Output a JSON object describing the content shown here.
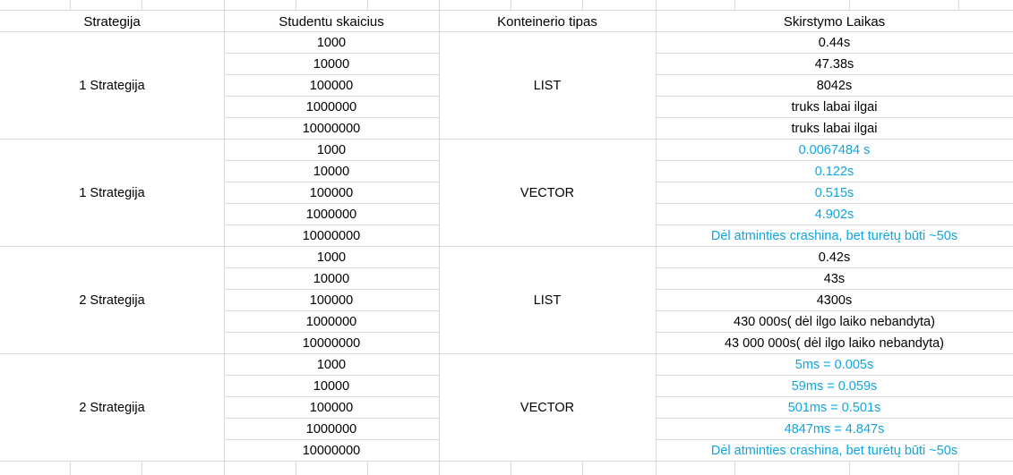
{
  "headers": {
    "strategy": "Strategija",
    "students": "Studentu skaicius",
    "container": "Konteinerio tipas",
    "time": "Skirstymo Laikas"
  },
  "blocks": [
    {
      "strategy": "1 Strategija",
      "container": "LIST",
      "highlight": false,
      "rows": [
        {
          "students": "1000",
          "time": "0.44s"
        },
        {
          "students": "10000",
          "time": "47.38s"
        },
        {
          "students": "100000",
          "time": "8042s"
        },
        {
          "students": "1000000",
          "time": "truks labai ilgai"
        },
        {
          "students": "10000000",
          "time": "truks labai ilgai"
        }
      ]
    },
    {
      "strategy": "1 Strategija",
      "container": "VECTOR",
      "highlight": true,
      "rows": [
        {
          "students": "1000",
          "time": "0.0067484 s"
        },
        {
          "students": "10000",
          "time": "0.122s"
        },
        {
          "students": "100000",
          "time": "0.515s"
        },
        {
          "students": "1000000",
          "time": "4.902s"
        },
        {
          "students": "10000000",
          "time": "Dėl atminties crashina, bet turėtų būti ~50s"
        }
      ]
    },
    {
      "strategy": "2 Strategija",
      "container": "LIST",
      "highlight": false,
      "rows": [
        {
          "students": "1000",
          "time": "0.42s"
        },
        {
          "students": "10000",
          "time": "43s"
        },
        {
          "students": "100000",
          "time": "4300s"
        },
        {
          "students": "1000000",
          "time": "430 000s( dėl ilgo laiko nebandyta)"
        },
        {
          "students": "10000000",
          "time": "43 000 000s( dėl ilgo laiko nebandyta)"
        }
      ]
    },
    {
      "strategy": "2 Strategija",
      "container": "VECTOR",
      "highlight": true,
      "rows": [
        {
          "students": "1000",
          "time": "5ms = 0.005s"
        },
        {
          "students": "10000",
          "time": "59ms = 0.059s"
        },
        {
          "students": "100000",
          "time": "501ms = 0.501s"
        },
        {
          "students": "1000000",
          "time": "4847ms = 4.847s"
        },
        {
          "students": "10000000",
          "time": "Dėl atminties crashina, bet turėtų būti ~50s"
        }
      ]
    }
  ],
  "colors": {
    "gridline": "#dadada",
    "highlight_text": "#0ea5e0",
    "text": "#000000"
  }
}
